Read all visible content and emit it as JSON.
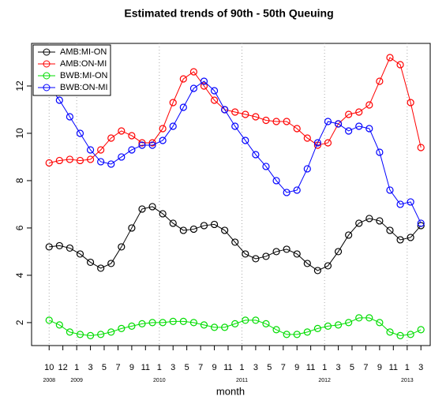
{
  "chart_data": {
    "type": "line",
    "title": "Estimated trends of 90th - 50th Queuing",
    "x_label": "month",
    "x": [
      0,
      1,
      2,
      3,
      4,
      5,
      6,
      7,
      8,
      9,
      10,
      11,
      12,
      13,
      14,
      15,
      16,
      17,
      18,
      19,
      20,
      21,
      22,
      23,
      24,
      25,
      26,
      27,
      28,
      29,
      30,
      31,
      32,
      33,
      34,
      35,
      36
    ],
    "series": [
      {
        "name": "AMB:MI-ON",
        "color": "#000000",
        "values": [
          5.2,
          5.25,
          5.15,
          4.9,
          4.55,
          4.3,
          4.5,
          5.2,
          6.0,
          6.8,
          6.9,
          6.6,
          6.2,
          5.9,
          5.95,
          6.1,
          6.15,
          5.9,
          5.4,
          4.9,
          4.7,
          4.8,
          5.0,
          5.1,
          4.9,
          4.5,
          4.2,
          4.4,
          5.0,
          5.7,
          6.2,
          6.4,
          6.3,
          5.9,
          5.5,
          5.6,
          6.1
        ]
      },
      {
        "name": "AMB:ON-MI",
        "color": "#ff0000",
        "values": [
          8.75,
          8.85,
          8.9,
          8.85,
          8.9,
          9.3,
          9.8,
          10.1,
          9.9,
          9.6,
          9.6,
          10.2,
          11.3,
          12.3,
          12.6,
          12.0,
          11.4,
          11.0,
          10.9,
          10.8,
          10.7,
          10.55,
          10.5,
          10.5,
          10.2,
          9.8,
          9.5,
          9.6,
          10.4,
          10.8,
          10.9,
          11.2,
          12.2,
          13.2,
          12.9,
          11.3,
          9.4
        ]
      },
      {
        "name": "BWB:MI-ON",
        "color": "#00dd00",
        "values": [
          2.1,
          1.9,
          1.6,
          1.5,
          1.45,
          1.5,
          1.6,
          1.75,
          1.85,
          1.95,
          2.0,
          2.0,
          2.05,
          2.05,
          2.0,
          1.9,
          1.8,
          1.8,
          1.95,
          2.1,
          2.1,
          1.95,
          1.7,
          1.5,
          1.5,
          1.6,
          1.75,
          1.85,
          1.9,
          2.0,
          2.2,
          2.2,
          2.0,
          1.6,
          1.45,
          1.5,
          1.7
        ]
      },
      {
        "name": "BWB:ON-MI",
        "color": "#0000ff",
        "values": [
          12.0,
          11.4,
          10.7,
          10.0,
          9.3,
          8.8,
          8.7,
          9.0,
          9.3,
          9.5,
          9.5,
          9.7,
          10.3,
          11.1,
          11.9,
          12.2,
          11.8,
          11.0,
          10.3,
          9.7,
          9.1,
          8.6,
          8.0,
          7.5,
          7.6,
          8.5,
          9.6,
          10.5,
          10.4,
          10.1,
          10.3,
          10.2,
          9.2,
          7.6,
          7.0,
          7.1,
          6.2
        ]
      }
    ],
    "xlim": [
      -1.7,
      36.9
    ],
    "xticks": [
      {
        "value": 0,
        "label": "10"
      },
      {
        "value": 1.33,
        "label": "12"
      },
      {
        "value": 2.67,
        "label": "1"
      },
      {
        "value": 4,
        "label": "3"
      },
      {
        "value": 5.33,
        "label": "5"
      },
      {
        "value": 6.67,
        "label": "7"
      },
      {
        "value": 8,
        "label": "9"
      },
      {
        "value": 9.33,
        "label": "11"
      },
      {
        "value": 10.67,
        "label": "1"
      },
      {
        "value": 12,
        "label": "3"
      },
      {
        "value": 13.33,
        "label": "5"
      },
      {
        "value": 14.67,
        "label": "7"
      },
      {
        "value": 16,
        "label": "9"
      },
      {
        "value": 17.33,
        "label": "11"
      },
      {
        "value": 18.67,
        "label": "1"
      },
      {
        "value": 20,
        "label": "3"
      },
      {
        "value": 21.33,
        "label": "5"
      },
      {
        "value": 22.67,
        "label": "7"
      },
      {
        "value": 24,
        "label": "9"
      },
      {
        "value": 25.33,
        "label": "11"
      },
      {
        "value": 26.67,
        "label": "1"
      },
      {
        "value": 28,
        "label": "3"
      },
      {
        "value": 29.33,
        "label": "5"
      },
      {
        "value": 30.67,
        "label": "7"
      },
      {
        "value": 32,
        "label": "9"
      },
      {
        "value": 33.33,
        "label": "11"
      },
      {
        "value": 34.67,
        "label": "1"
      },
      {
        "value": 36,
        "label": "3"
      }
    ],
    "year_labels": [
      {
        "value": 0,
        "label": "2008"
      },
      {
        "value": 2.67,
        "label": "2009"
      },
      {
        "value": 10.67,
        "label": "2010"
      },
      {
        "value": 18.67,
        "label": "2011"
      },
      {
        "value": 26.67,
        "label": "2012"
      },
      {
        "value": 34.67,
        "label": "2013"
      }
    ],
    "ylim": [
      1.03,
      13.8
    ],
    "yticks": [
      2,
      4,
      6,
      8,
      10,
      12
    ],
    "grid": true,
    "legend": "top-left"
  }
}
